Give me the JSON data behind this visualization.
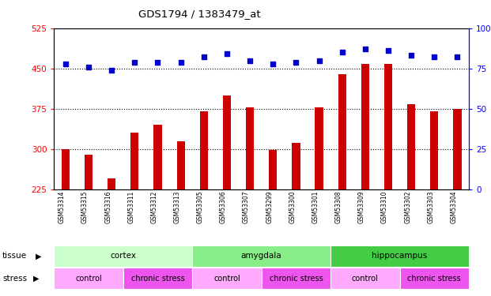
{
  "title": "GDS1794 / 1383479_at",
  "samples": [
    "GSM53314",
    "GSM53315",
    "GSM53316",
    "GSM53311",
    "GSM53312",
    "GSM53313",
    "GSM53305",
    "GSM53306",
    "GSM53307",
    "GSM53299",
    "GSM53300",
    "GSM53301",
    "GSM53308",
    "GSM53309",
    "GSM53310",
    "GSM53302",
    "GSM53303",
    "GSM53304"
  ],
  "bar_values": [
    300,
    290,
    245,
    330,
    345,
    315,
    370,
    400,
    378,
    298,
    312,
    378,
    440,
    458,
    458,
    383,
    370,
    375
  ],
  "dot_values": [
    78,
    76,
    74,
    79,
    79,
    79,
    82,
    84,
    80,
    78,
    79,
    80,
    85,
    87,
    86,
    83,
    82,
    82
  ],
  "ylim_left": [
    225,
    525
  ],
  "ylim_right": [
    0,
    100
  ],
  "yticks_left": [
    225,
    300,
    375,
    450,
    525
  ],
  "yticks_right": [
    0,
    25,
    50,
    75,
    100
  ],
  "bar_color": "#cc0000",
  "dot_color": "#0000cc",
  "bar_bottom": 225,
  "tissue_groups": [
    {
      "label": "cortex",
      "start": 0,
      "end": 6,
      "color": "#ccffcc"
    },
    {
      "label": "amygdala",
      "start": 6,
      "end": 12,
      "color": "#88ee88"
    },
    {
      "label": "hippocampus",
      "start": 12,
      "end": 18,
      "color": "#44cc44"
    }
  ],
  "stress_groups": [
    {
      "label": "control",
      "start": 0,
      "end": 3,
      "color": "#ffaaff"
    },
    {
      "label": "chronic stress",
      "start": 3,
      "end": 6,
      "color": "#ee55ee"
    },
    {
      "label": "control",
      "start": 6,
      "end": 9,
      "color": "#ffaaff"
    },
    {
      "label": "chronic stress",
      "start": 9,
      "end": 12,
      "color": "#ee55ee"
    },
    {
      "label": "control",
      "start": 12,
      "end": 15,
      "color": "#ffaaff"
    },
    {
      "label": "chronic stress",
      "start": 15,
      "end": 18,
      "color": "#ee55ee"
    }
  ],
  "grid_color": "black",
  "label_bg_color": "#cccccc",
  "fig_bg_color": "#ffffff"
}
